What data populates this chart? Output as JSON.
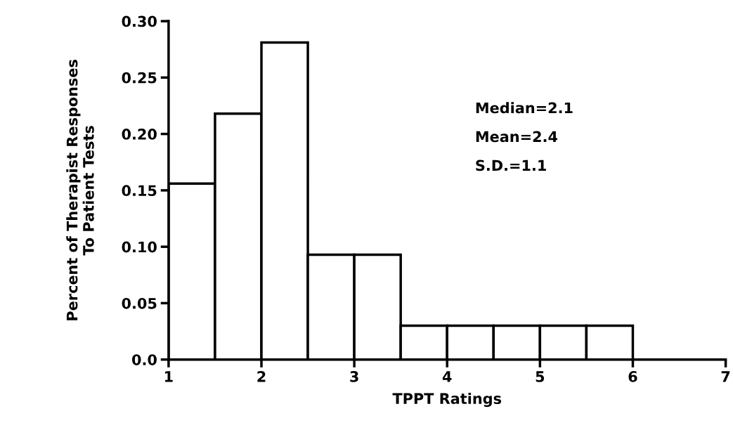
{
  "chart_data": {
    "type": "histogram",
    "xlabel": "TPPT Ratings",
    "ylabel": "Percent of Therapist Responses\nTo Patient Tests",
    "bins": [
      1,
      1.5,
      2,
      2.5,
      3,
      3.5,
      4,
      4.5,
      5,
      5.5,
      6
    ],
    "values": [
      0.156,
      0.218,
      0.281,
      0.093,
      0.093,
      0.03,
      0.03,
      0.03,
      0.03,
      0.03
    ],
    "color": "#ffffff",
    "xlim": [
      1,
      7
    ],
    "xticks": [
      1,
      2,
      3,
      4,
      5,
      6,
      7
    ],
    "ylim": [
      0,
      0.3
    ],
    "yticks": [
      {
        "value": 0,
        "label": "0.0"
      },
      {
        "value": 0.05,
        "label": "0.05"
      },
      {
        "value": 0.1,
        "label": "0.10"
      },
      {
        "value": 0.15,
        "label": "0.15"
      },
      {
        "value": 0.2,
        "label": "0.20"
      },
      {
        "value": 0.25,
        "label": "0.25"
      },
      {
        "value": 0.3,
        "label": "0.30"
      }
    ],
    "annotations": [
      "Median=2.1",
      "Mean=2.4",
      "S.D.=1.1"
    ],
    "grid": false
  }
}
